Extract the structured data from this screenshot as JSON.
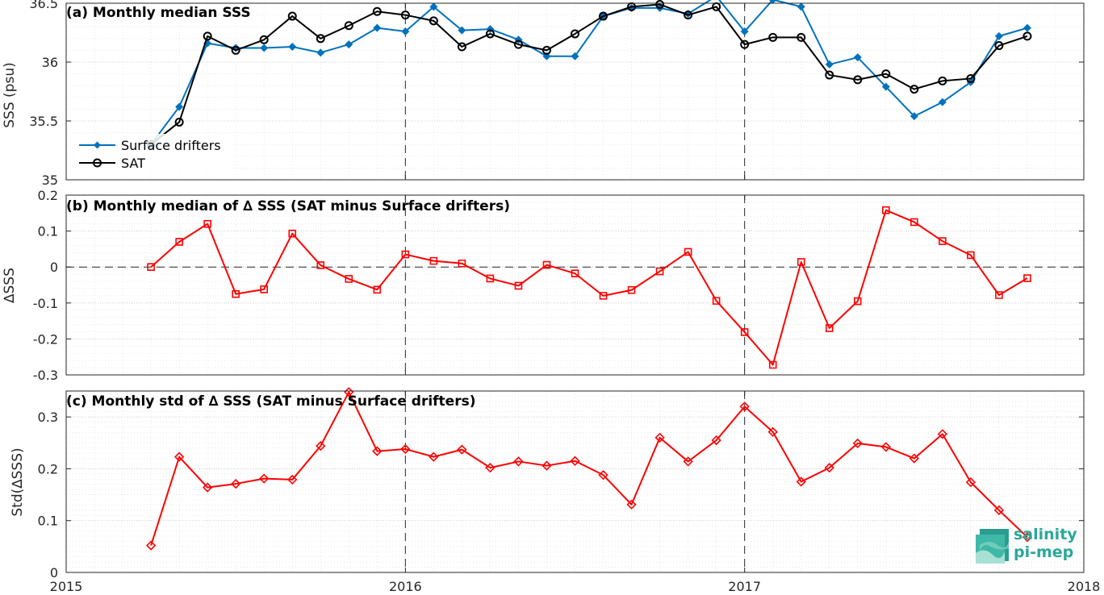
{
  "chart_data": [
    {
      "type": "line",
      "title": "(a) Monthly median SSS",
      "ylabel": "SSS (psu)",
      "ylim": [
        35,
        36.5
      ],
      "yticks": [
        "35",
        "35.5",
        "36",
        "36.5"
      ],
      "xlim": [
        "2015-01",
        "2018-01"
      ],
      "vlines": [
        "2016-01",
        "2017-01"
      ],
      "grid": true,
      "legend_position": "lower-left",
      "x": [
        "2015-04",
        "2015-05",
        "2015-06",
        "2015-07",
        "2015-08",
        "2015-09",
        "2015-10",
        "2015-11",
        "2015-12",
        "2016-01",
        "2016-02",
        "2016-03",
        "2016-04",
        "2016-05",
        "2016-06",
        "2016-07",
        "2016-08",
        "2016-09",
        "2016-10",
        "2016-11",
        "2016-12",
        "2017-01",
        "2017-02",
        "2017-03",
        "2017-04",
        "2017-05",
        "2017-06",
        "2017-07",
        "2017-08",
        "2017-09",
        "2017-10",
        "2017-11"
      ],
      "series": [
        {
          "name": "Surface drifters",
          "color": "#0072bd",
          "marker": "diamond",
          "values": [
            35.3,
            35.62,
            36.16,
            36.12,
            36.12,
            36.13,
            36.08,
            36.15,
            36.29,
            36.26,
            36.47,
            36.27,
            36.28,
            36.19,
            36.05,
            36.05,
            36.39,
            36.46,
            36.46,
            36.41,
            36.56,
            36.26,
            36.53,
            36.47,
            35.98,
            36.04,
            35.79,
            35.54,
            35.66,
            35.83,
            36.22,
            36.29
          ]
        },
        {
          "name": "SAT",
          "color": "#000000",
          "marker": "circle",
          "values": [
            35.3,
            35.49,
            36.22,
            36.1,
            36.19,
            36.39,
            36.2,
            36.31,
            36.43,
            36.4,
            36.35,
            36.13,
            36.24,
            36.15,
            36.1,
            36.24,
            36.39,
            36.47,
            36.49,
            36.4,
            36.47,
            36.15,
            36.21,
            36.21,
            35.89,
            35.85,
            35.9,
            35.77,
            35.84,
            35.86,
            36.14,
            36.22
          ]
        }
      ]
    },
    {
      "type": "line",
      "title": "(b) Monthly median of ∆ SSS (SAT minus Surface drifters)",
      "ylabel": "∆SSS",
      "ylim": [
        -0.3,
        0.2
      ],
      "yticks": [
        "-0.3",
        "-0.2",
        "-0.1",
        "0",
        "0.1",
        "0.2"
      ],
      "xlim": [
        "2015-01",
        "2018-01"
      ],
      "hline": 0,
      "vlines": [
        "2016-01",
        "2017-01"
      ],
      "grid": true,
      "x": [
        "2015-04",
        "2015-05",
        "2015-06",
        "2015-07",
        "2015-08",
        "2015-09",
        "2015-10",
        "2015-11",
        "2015-12",
        "2016-01",
        "2016-02",
        "2016-03",
        "2016-04",
        "2016-05",
        "2016-06",
        "2016-07",
        "2016-08",
        "2016-09",
        "2016-10",
        "2016-11",
        "2016-12",
        "2017-01",
        "2017-02",
        "2017-03",
        "2017-04",
        "2017-05",
        "2017-06",
        "2017-07",
        "2017-08",
        "2017-09",
        "2017-10",
        "2017-11"
      ],
      "series": [
        {
          "color": "#ff0000",
          "marker": "square",
          "values": [
            0.0,
            0.07,
            0.12,
            -0.075,
            -0.062,
            0.093,
            0.005,
            -0.033,
            -0.063,
            0.035,
            0.017,
            0.01,
            -0.032,
            -0.052,
            0.006,
            -0.018,
            -0.08,
            -0.064,
            -0.012,
            0.042,
            -0.094,
            -0.181,
            -0.272,
            0.014,
            -0.17,
            -0.095,
            0.158,
            0.125,
            0.072,
            0.033,
            -0.078,
            -0.031
          ]
        }
      ]
    },
    {
      "type": "line",
      "title": "(c) Monthly std of ∆ SSS (SAT minus Surface drifters)",
      "ylabel": "Std(∆SSS)",
      "ylim": [
        0,
        0.35
      ],
      "yticks": [
        "0",
        "0.1",
        "0.2",
        "0.3"
      ],
      "xlim": [
        "2015-01",
        "2018-01"
      ],
      "xticks": [
        "2015",
        "2016",
        "2017",
        "2018"
      ],
      "vlines": [
        "2016-01",
        "2017-01"
      ],
      "grid": true,
      "x": [
        "2015-04",
        "2015-05",
        "2015-06",
        "2015-07",
        "2015-08",
        "2015-09",
        "2015-10",
        "2015-11",
        "2015-12",
        "2016-01",
        "2016-02",
        "2016-03",
        "2016-04",
        "2016-05",
        "2016-06",
        "2016-07",
        "2016-08",
        "2016-09",
        "2016-10",
        "2016-11",
        "2016-12",
        "2017-01",
        "2017-02",
        "2017-03",
        "2017-04",
        "2017-05",
        "2017-06",
        "2017-07",
        "2017-08",
        "2017-09",
        "2017-10",
        "2017-11"
      ],
      "series": [
        {
          "color": "#ff0000",
          "marker": "diamond",
          "values": [
            0.052,
            0.223,
            0.164,
            0.171,
            0.181,
            0.179,
            0.244,
            0.348,
            0.234,
            0.238,
            0.223,
            0.237,
            0.202,
            0.214,
            0.206,
            0.215,
            0.188,
            0.131,
            0.26,
            0.214,
            0.255,
            0.32,
            0.271,
            0.175,
            0.202,
            0.249,
            0.242,
            0.22,
            0.267,
            0.174,
            0.12,
            0.068
          ]
        }
      ]
    }
  ],
  "logo": {
    "line1": "salinity",
    "line2": "pi-mep"
  }
}
